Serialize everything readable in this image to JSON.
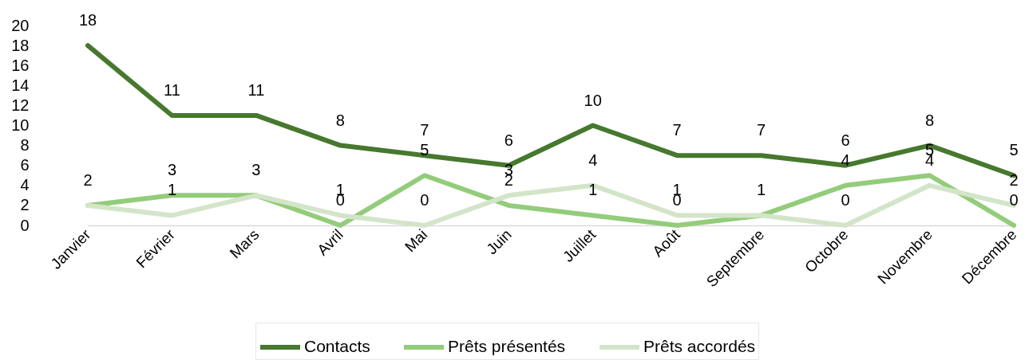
{
  "chart_data": {
    "type": "line",
    "categories": [
      "Janvier",
      "Février",
      "Mars",
      "Avril",
      "Mai",
      "Juin",
      "Juillet",
      "Août",
      "Septembre",
      "Octobre",
      "Novembre",
      "Décembre"
    ],
    "series": [
      {
        "name": "Contacts",
        "color": "#46782e",
        "values": [
          18,
          11,
          11,
          8,
          7,
          6,
          10,
          7,
          7,
          6,
          8,
          5
        ]
      },
      {
        "name": "Prêts présentés",
        "color": "#93cc7a",
        "values": [
          2,
          3,
          3,
          0,
          5,
          2,
          1,
          0,
          1,
          4,
          5,
          0
        ]
      },
      {
        "name": "Prêts accordés",
        "color": "#d3e5c9",
        "values": [
          2,
          1,
          3,
          1,
          0,
          3,
          4,
          1,
          1,
          0,
          4,
          2
        ],
        "value_labels": [
          null,
          "1",
          null,
          "1",
          "0",
          "3",
          "4",
          "1",
          null,
          "0",
          "4",
          "2"
        ]
      }
    ],
    "ylim": [
      0,
      20
    ],
    "yticks": [
      0,
      2,
      4,
      6,
      8,
      10,
      12,
      14,
      16,
      18,
      20
    ],
    "grid": false,
    "legend": "bottom",
    "data_labels": true,
    "line_style": "solid"
  }
}
